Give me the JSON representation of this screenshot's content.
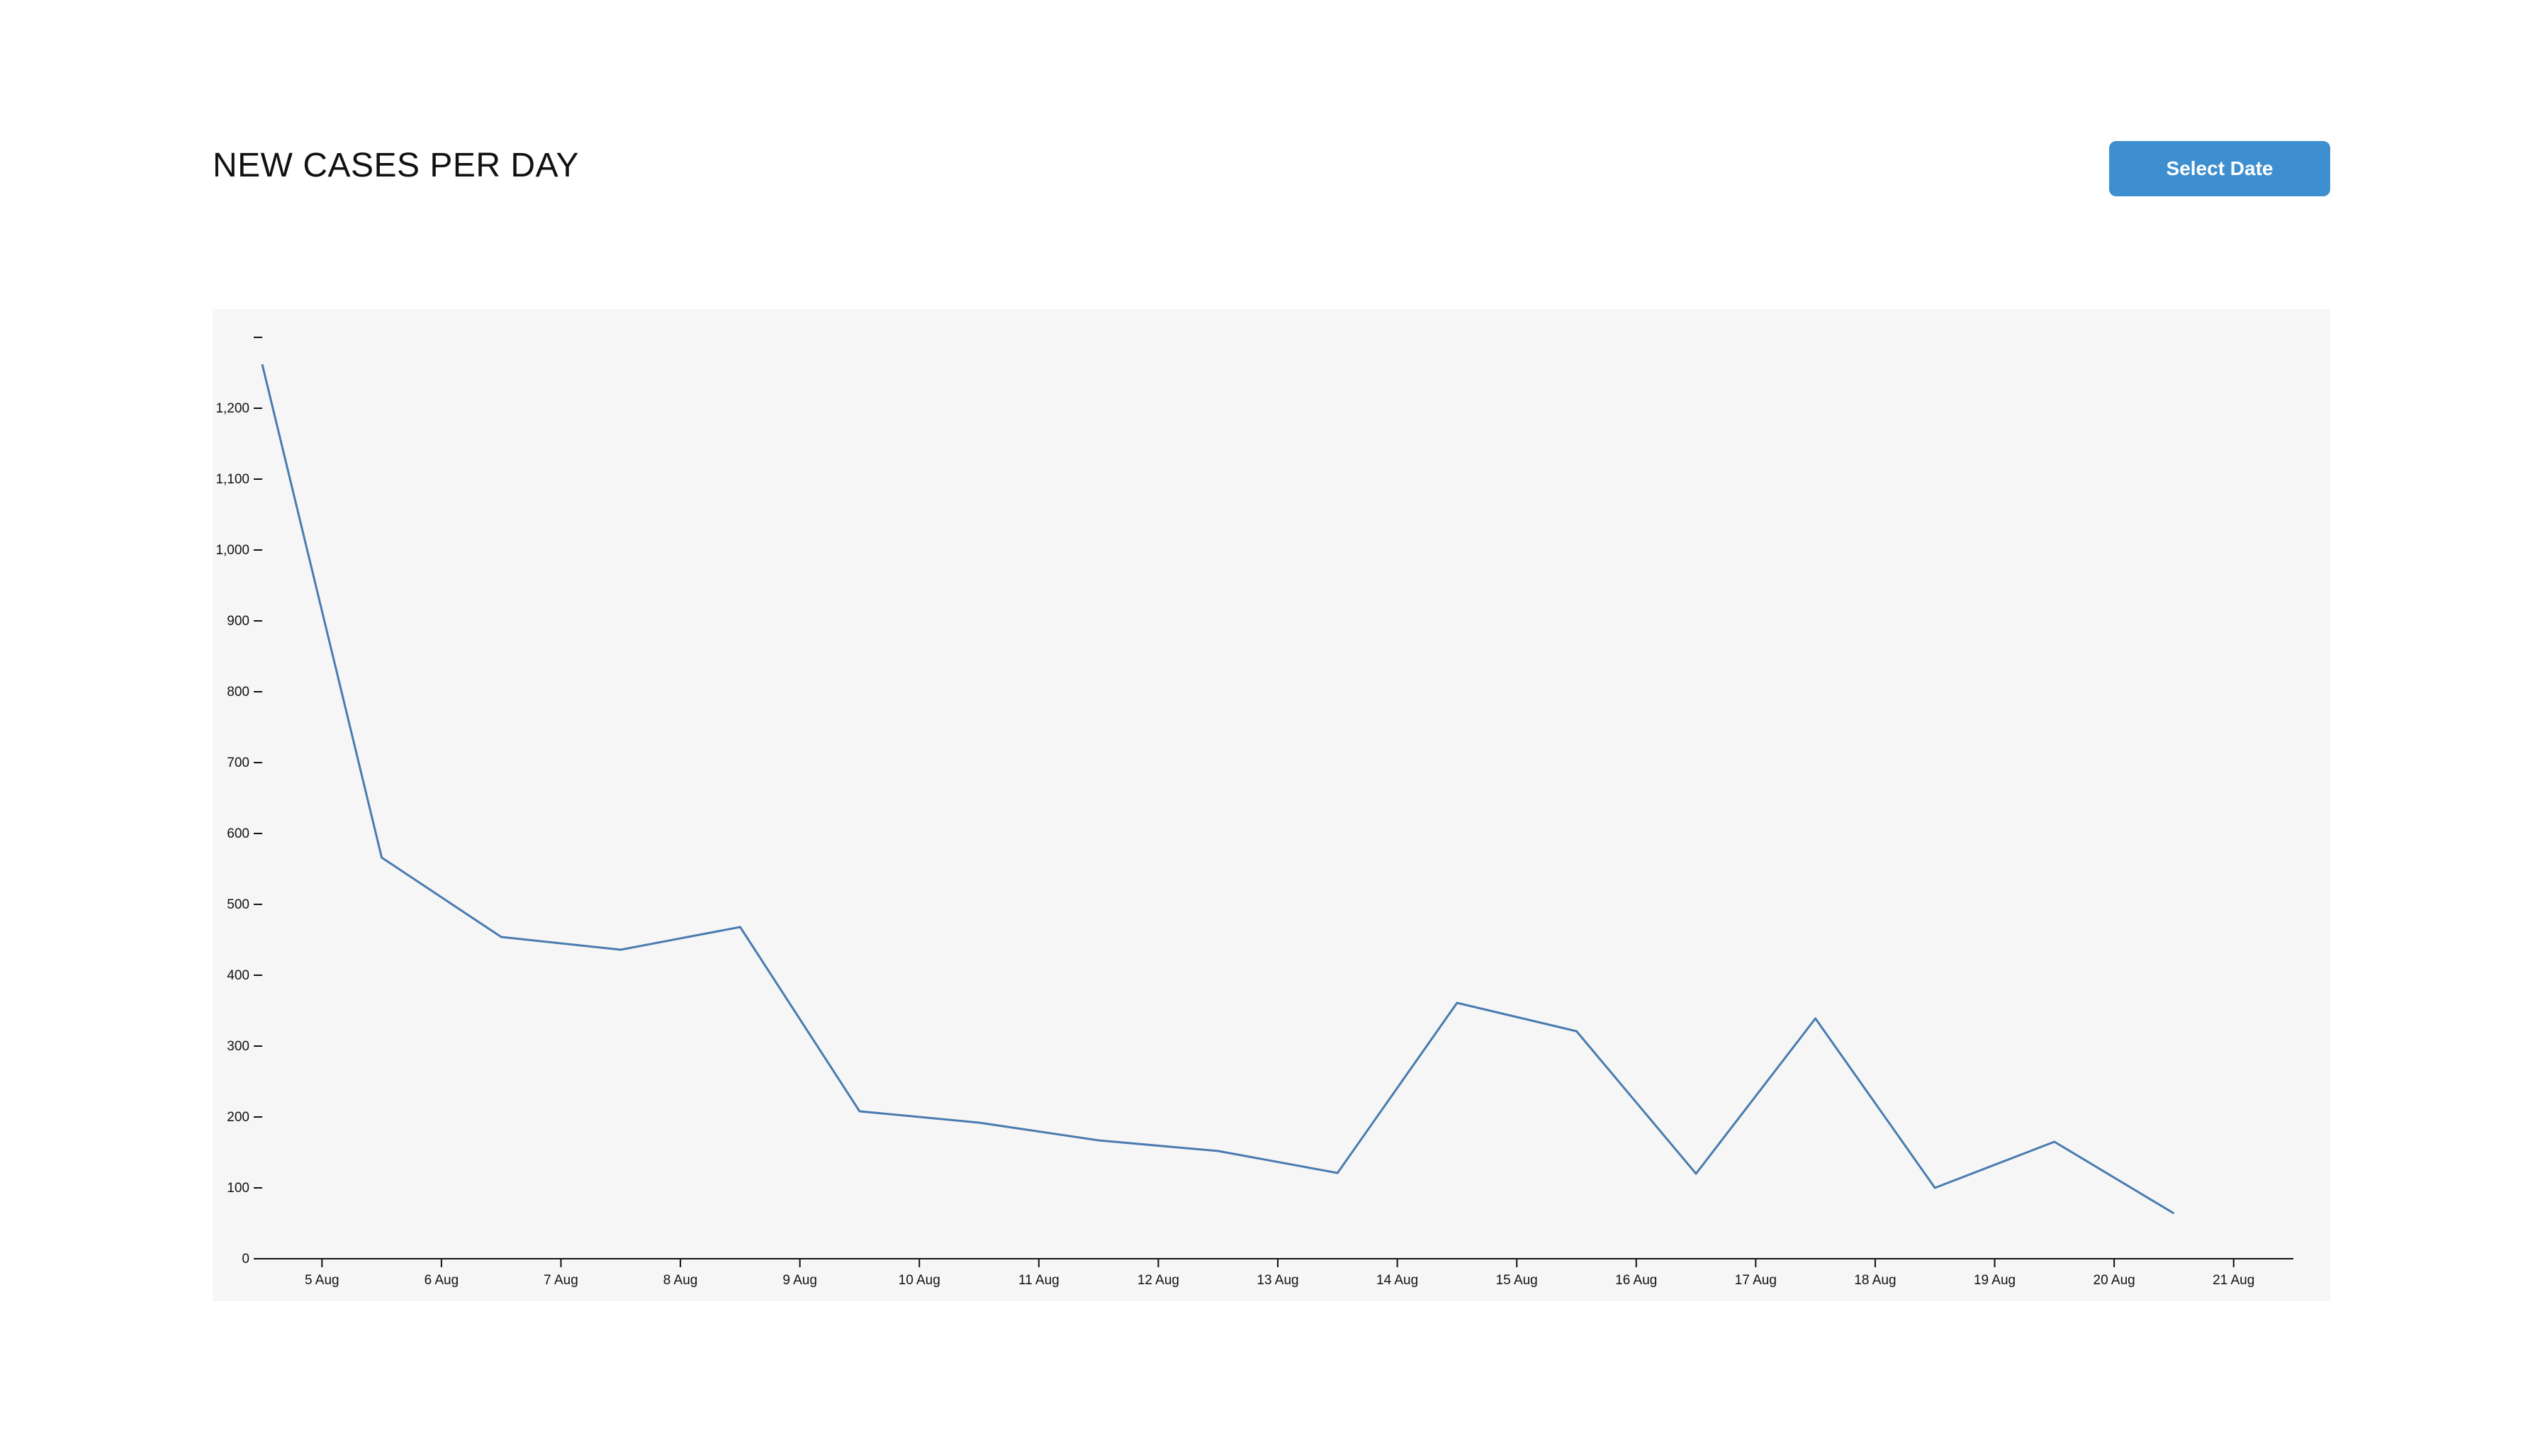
{
  "header": {
    "title": "NEW CASES PER DAY",
    "select_date_label": "Select Date"
  },
  "colors": {
    "accent": "#3e8fd0",
    "line": "#4a7bb0",
    "panel": "#f6f6f6",
    "axis": "#111111"
  },
  "chart_data": {
    "type": "line",
    "title": "NEW CASES PER DAY",
    "xlabel": "",
    "ylabel": "",
    "grid": false,
    "x_ticks": [
      "5 Aug",
      "6 Aug",
      "7 Aug",
      "8 Aug",
      "9 Aug",
      "10 Aug",
      "11 Aug",
      "12 Aug",
      "13 Aug",
      "14 Aug",
      "15 Aug",
      "16 Aug",
      "17 Aug",
      "18 Aug",
      "19 Aug",
      "20 Aug",
      "21 Aug"
    ],
    "xlim": [
      "4 Aug 12:00",
      "21 Aug 12:00"
    ],
    "y_ticks": [
      "0",
      "100",
      "200",
      "300",
      "400",
      "500",
      "600",
      "700",
      "800",
      "900",
      "1,000",
      "1,100",
      "1,200",
      ""
    ],
    "ylim": [
      0,
      1300
    ],
    "series": [
      {
        "x": [
          "4 Aug 12:00",
          "5 Aug 12:00",
          "6 Aug 12:00",
          "7 Aug 12:00",
          "8 Aug 12:00",
          "9 Aug 12:00",
          "10 Aug 12:00",
          "11 Aug 12:00",
          "12 Aug 12:00",
          "13 Aug 12:00",
          "14 Aug 12:00",
          "15 Aug 12:00",
          "16 Aug 12:00",
          "17 Aug 12:00",
          "18 Aug 12:00",
          "19 Aug 12:00",
          "20 Aug 12:00"
        ],
        "values": [
          1262,
          566,
          454,
          436,
          468,
          208,
          192,
          167,
          152,
          121,
          361,
          321,
          120,
          339,
          100,
          165,
          64
        ]
      }
    ]
  }
}
